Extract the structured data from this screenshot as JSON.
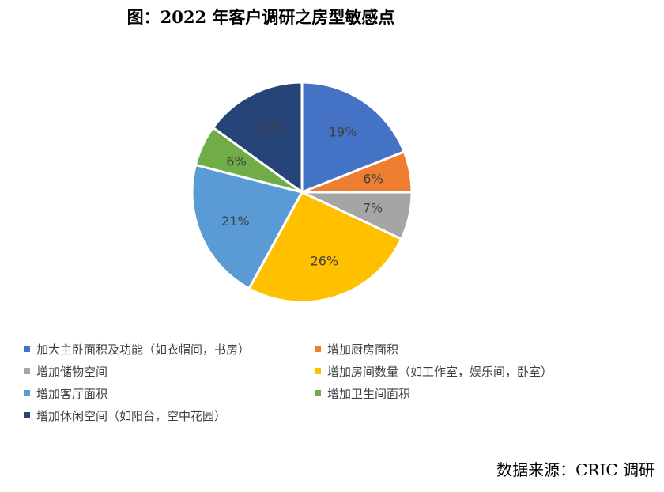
{
  "title": "图：2022 年客户调研之房型敏感点",
  "source": "数据来源：CRIC 调研",
  "chart_data": {
    "type": "pie",
    "title": "图：2022 年客户调研之房型敏感点",
    "unit": "%",
    "legend_position": "bottom",
    "slices": [
      {
        "label": "加大主卧面积及功能（如衣帽间，书房）",
        "value": 19,
        "display": "19%",
        "color": "#4472C4"
      },
      {
        "label": "增加厨房面积",
        "value": 6,
        "display": "6%",
        "color": "#ED7D31"
      },
      {
        "label": "增加储物空间",
        "value": 7,
        "display": "7%",
        "color": "#A5A5A5"
      },
      {
        "label": "增加房间数量（如工作室，娱乐间，卧室）",
        "value": 26,
        "display": "26%",
        "color": "#FFC000"
      },
      {
        "label": "增加客厅面积",
        "value": 21,
        "display": "21%",
        "color": "#5B9BD5"
      },
      {
        "label": "增加卫生间面积",
        "value": 6,
        "display": "6%",
        "color": "#70AD47"
      },
      {
        "label": "增加休闲空间（如阳台，空中花园）",
        "value": 15,
        "display": "15%",
        "color": "#264478"
      }
    ]
  }
}
